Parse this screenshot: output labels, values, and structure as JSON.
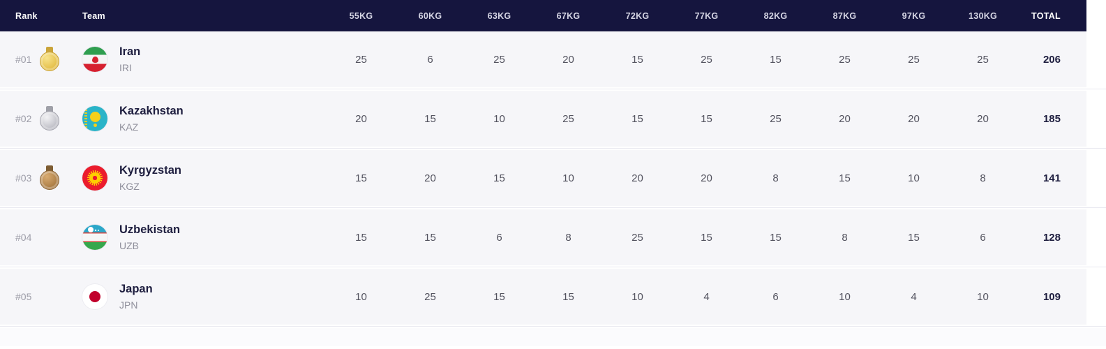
{
  "table": {
    "columns": [
      {
        "key": "rank",
        "label": "Rank"
      },
      {
        "key": "team",
        "label": "Team"
      },
      {
        "key": "w55",
        "label": "55KG"
      },
      {
        "key": "w60",
        "label": "60KG"
      },
      {
        "key": "w63",
        "label": "63KG"
      },
      {
        "key": "w67",
        "label": "67KG"
      },
      {
        "key": "w72",
        "label": "72KG"
      },
      {
        "key": "w77",
        "label": "77KG"
      },
      {
        "key": "w82",
        "label": "82KG"
      },
      {
        "key": "w87",
        "label": "87KG"
      },
      {
        "key": "w97",
        "label": "97KG"
      },
      {
        "key": "w130",
        "label": "130KG"
      },
      {
        "key": "total",
        "label": "TOTAL"
      }
    ],
    "rows": [
      {
        "rank": "#01",
        "medal": "gold",
        "medal_icon": "gold-medal-icon",
        "flag_icon": "iri-flag-icon",
        "team": "Iran",
        "code": "IRI",
        "scores": [
          25,
          6,
          25,
          20,
          15,
          25,
          15,
          25,
          25,
          25
        ],
        "total": 206
      },
      {
        "rank": "#02",
        "medal": "silver",
        "medal_icon": "silver-medal-icon",
        "flag_icon": "kaz-flag-icon",
        "team": "Kazakhstan",
        "code": "KAZ",
        "scores": [
          20,
          15,
          10,
          25,
          15,
          15,
          25,
          20,
          20,
          20
        ],
        "total": 185
      },
      {
        "rank": "#03",
        "medal": "bronze",
        "medal_icon": "bronze-medal-icon",
        "flag_icon": "kgz-flag-icon",
        "team": "Kyrgyzstan",
        "code": "KGZ",
        "scores": [
          15,
          20,
          15,
          10,
          20,
          20,
          8,
          15,
          10,
          8
        ],
        "total": 141
      },
      {
        "rank": "#04",
        "medal": null,
        "medal_icon": null,
        "flag_icon": "uzb-flag-icon",
        "team": "Uzbekistan",
        "code": "UZB",
        "scores": [
          15,
          15,
          6,
          8,
          25,
          15,
          15,
          8,
          15,
          6
        ],
        "total": 128
      },
      {
        "rank": "#05",
        "medal": null,
        "medal_icon": null,
        "flag_icon": "jpn-flag-icon",
        "team": "Japan",
        "code": "JPN",
        "scores": [
          10,
          25,
          15,
          15,
          10,
          4,
          6,
          10,
          4,
          10
        ],
        "total": 109
      }
    ]
  },
  "colors": {
    "header_bg": "#15153e",
    "header_text": "#ffffff",
    "header_muted_text": "#d3d3e2",
    "row_bg": "#f6f6f9",
    "divider": "#e9e9f0",
    "team_name_text": "#1e1e3f",
    "score_text": "#52525e",
    "muted_text": "#9c9ca7",
    "gold_medal": "#e3bd45",
    "silver_medal": "#c6c6cc",
    "bronze_medal": "#b4834f",
    "iran_flag": [
      "#2f9e4f",
      "#f5f5f5",
      "#d6202f"
    ],
    "kazakhstan_flag": [
      "#2ab4c8",
      "#f5d019"
    ],
    "kyrgyzstan_flag": [
      "#eb1c2d",
      "#ffce00"
    ],
    "uzbekistan_flag": [
      "#2ba7c9",
      "#d84b44",
      "#f6f6f6",
      "#36a84c"
    ],
    "japan_flag": [
      "#ffffff",
      "#c1002b"
    ]
  }
}
